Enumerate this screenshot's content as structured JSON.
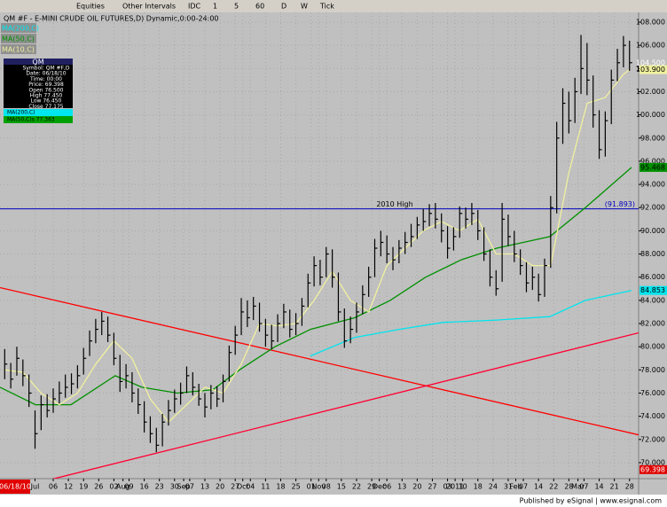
{
  "toolbar": {
    "items": [
      "Equities",
      "Other Intervals",
      "IDC",
      "1",
      "5",
      "60",
      "D",
      "W",
      "Tick"
    ]
  },
  "footer": "Published by eSignal | www.esignal.com",
  "info_box": {
    "title": "QM",
    "rows": [
      "Symbol: QM #F,D",
      "Date: 06/18/10",
      "Time: 00:00",
      "Price: 69.398",
      "Open 76.500",
      "High 77.450",
      "Low 76.450",
      "Close 77.175"
    ],
    "ma_rows": [
      "MA(200,C)",
      "MA(50,C)s 77.363"
    ]
  },
  "chart_data": {
    "type": "ohlc",
    "title": "QM #F - E-MINI CRUDE OIL FUTURES,D) Dynamic,0:00-24:00",
    "x": [
      -3.2,
      -2.8,
      -2.4,
      -2,
      -1.6,
      -1.2,
      -0.8,
      -0.4,
      0,
      0.4,
      0.8,
      1.2,
      1.6,
      2,
      2.4,
      2.8,
      3.2,
      3.6,
      4,
      4.4,
      4.8,
      5.2,
      5.6,
      6,
      6.4,
      6.8,
      7.2,
      7.6,
      8,
      8.4,
      8.8,
      9.2,
      9.6,
      10,
      10.4,
      10.8,
      11.2,
      11.6,
      12,
      12.4,
      12.8,
      13.2,
      13.6,
      14,
      14.4,
      14.8,
      15.2,
      15.6,
      16,
      16.4,
      16.8,
      17.2,
      17.6,
      18,
      18.4,
      18.8,
      19.2,
      19.6,
      20,
      20.4,
      20.8,
      21.2,
      21.6,
      22,
      22.4,
      22.8,
      23.2,
      23.6,
      24,
      24.4,
      24.8,
      25.2,
      25.6,
      26,
      26.4,
      26.8,
      27.2,
      27.6,
      28,
      28.4,
      28.8,
      29.2,
      29.6,
      30,
      30.4,
      30.8,
      31.2,
      31.6,
      32,
      32.4,
      32.8,
      33.2,
      33.6,
      34,
      34.4,
      34.8,
      35.2,
      35.6,
      36,
      36.4,
      36.8,
      37.2,
      37.6,
      38
    ],
    "high": [
      79.8,
      78.6,
      80,
      78.9,
      77.6,
      74.5,
      75.8,
      75.9,
      76.4,
      77,
      77.6,
      77.7,
      78.4,
      79.9,
      81.4,
      82.4,
      83,
      82.6,
      81.2,
      79.3,
      78.5,
      77.8,
      76.4,
      75.3,
      74,
      73,
      74.2,
      75.4,
      76.3,
      76.9,
      78.3,
      77.8,
      76.8,
      76,
      76.7,
      76.6,
      77.6,
      80.1,
      81.8,
      84.2,
      84,
      84.3,
      83.8,
      82.4,
      81.9,
      82.8,
      83.7,
      83.2,
      82.9,
      84.2,
      86.3,
      87.8,
      87.5,
      88.6,
      88.4,
      86.4,
      83.3,
      82.6,
      83.8,
      85.3,
      86.9,
      89.3,
      90,
      89.6,
      88.6,
      89.2,
      89.9,
      90.6,
      91.2,
      91.9,
      92.3,
      92.4,
      91.5,
      90.4,
      90.3,
      92.1,
      92,
      92.4,
      91.8,
      90.3,
      88.4,
      86.6,
      92.4,
      91.4,
      90,
      88.4,
      87.3,
      86.9,
      86.3,
      87.6,
      93,
      99.4,
      102.3,
      102,
      103.2,
      106.9,
      106.2,
      103.4,
      100.4,
      100.3,
      103.9,
      105.7,
      106.8,
      106.4
    ],
    "low": [
      77.2,
      76.4,
      77.5,
      76.6,
      74.8,
      71.2,
      72.8,
      73.9,
      74.3,
      75.1,
      75.6,
      75.9,
      76.4,
      77.6,
      79.2,
      80.3,
      81,
      80.4,
      78.4,
      76.1,
      76.4,
      75.2,
      74.2,
      72.6,
      71.7,
      70.9,
      71.4,
      73.2,
      74.3,
      75,
      76,
      75.8,
      74.9,
      73.9,
      74.6,
      74.8,
      75.2,
      77,
      79.3,
      81,
      81.7,
      82.3,
      81.3,
      80,
      79.8,
      80.4,
      81.6,
      80.8,
      81,
      81.8,
      83.4,
      85.2,
      85.3,
      86,
      85.1,
      82.2,
      79.9,
      80.3,
      81.2,
      82.8,
      84.3,
      86,
      87.8,
      87.2,
      86.6,
      87.2,
      88,
      88.6,
      89.3,
      90,
      90.4,
      90.2,
      89,
      87.6,
      88.3,
      89.4,
      90.2,
      90.5,
      89.2,
      87.4,
      85.2,
      84.4,
      85.6,
      88.7,
      87.3,
      86.2,
      84.7,
      84.9,
      83.9,
      84.3,
      86.8,
      91.5,
      97.5,
      98.4,
      99.3,
      101.8,
      101.7,
      98.9,
      96.2,
      96.4,
      99.2,
      102.9,
      104.1,
      103.8
    ],
    "close": [
      78.5,
      77.2,
      79,
      77.5,
      76,
      72.5,
      75,
      74.5,
      75.5,
      76,
      76.5,
      76.8,
      77.5,
      79,
      80.5,
      81.5,
      82.2,
      81,
      79,
      77,
      77.5,
      76,
      75,
      73.5,
      72.5,
      71.5,
      73.5,
      74.5,
      75.5,
      76,
      77.5,
      76.5,
      75.5,
      74.8,
      76,
      75.5,
      77,
      79.5,
      81,
      83,
      82.5,
      83.5,
      82,
      81,
      80.5,
      82,
      83,
      81.5,
      82,
      83.5,
      85.5,
      87,
      86,
      88,
      86,
      83,
      80.5,
      81.5,
      83,
      84.5,
      86,
      88.5,
      89,
      88,
      87.5,
      88.5,
      89,
      89.5,
      90.5,
      90.8,
      91.5,
      91,
      90,
      88.5,
      89.5,
      91.5,
      91,
      91.5,
      90,
      88,
      86,
      85,
      91,
      89.5,
      88,
      87,
      85.5,
      86,
      84.5,
      87,
      92,
      98,
      101,
      99.5,
      102,
      104,
      103,
      100,
      97,
      99.5,
      103,
      104.5,
      106,
      104.5
    ],
    "close_label": "104.500",
    "bar_color": "#000000",
    "overlays": [
      {
        "name": "MA(200,C)",
        "color": "#00e5ee",
        "x": [
          16.96,
          19.88,
          22.81,
          25.73,
          29.24,
          32.75,
          35.09,
          38.13
        ],
        "values": [
          79.2,
          80.8,
          81.5,
          82.1,
          82.3,
          82.6,
          84,
          84.853
        ],
        "last_label": "84.853"
      },
      {
        "name": "MA(50,C)",
        "color": "#009000",
        "x": [
          -3.51,
          -1.17,
          1.17,
          4.09,
          5.85,
          8.19,
          10.53,
          12.28,
          14.62,
          16.96,
          19.88,
          22.22,
          24.56,
          26.9,
          29.24,
          30.99,
          32.75,
          35.09,
          38.13
        ],
        "values": [
          76.5,
          75,
          75,
          77.5,
          76.5,
          76,
          76.3,
          78,
          80,
          81.5,
          82.5,
          84,
          86,
          87.5,
          88.5,
          89,
          89.5,
          92,
          95.468
        ],
        "last_label": "95.468"
      },
      {
        "name": "MA(10,C)",
        "color": "#f0f0a0",
        "x": [
          -3.2,
          -2,
          -0.8,
          0.4,
          1.6,
          2.8,
          4,
          5.2,
          6.4,
          7.6,
          8.8,
          10,
          11.2,
          12.4,
          13.6,
          14.8,
          16,
          17.2,
          18.4,
          19.6,
          20.8,
          22,
          23.2,
          24.4,
          25.6,
          26.8,
          28,
          29.2,
          30.4,
          31.6,
          32.8,
          34,
          35.2,
          36.4,
          37.6,
          38
        ],
        "values": [
          78,
          77.8,
          76,
          75,
          76,
          78.5,
          80.5,
          79,
          75.5,
          73.5,
          75,
          76.5,
          76,
          78.5,
          82,
          81.8,
          82,
          84,
          86.5,
          84,
          83,
          87,
          88.5,
          90,
          90.8,
          90,
          91,
          88,
          88,
          87,
          87,
          95,
          101,
          101.5,
          103.5,
          103.9
        ],
        "last_label": "103.900"
      }
    ],
    "trendlines": [
      {
        "color": "#ff0000",
        "x": [
          -3.51,
          38.6
        ],
        "values": [
          85.1,
          72.4
        ]
      },
      {
        "color": "#ff0030",
        "x": [
          0,
          38.6
        ],
        "values": [
          68.6,
          81.2
        ]
      }
    ],
    "hline": {
      "name": "2010 High",
      "value": 91.893,
      "label": "(91.893)",
      "color": "#0000c0"
    },
    "cursor": {
      "date": "06/18/10",
      "price": {
        "value": 69.398,
        "label": "69.398"
      },
      "color": "#e00000"
    },
    "xlim": [
      -3.51,
      38.6
    ],
    "ylim": [
      68.62,
      108.84
    ],
    "xticks": [
      {
        "value": -1.2,
        "label": "Jul"
      },
      {
        "value": 0,
        "label": "06"
      },
      {
        "value": 1,
        "label": "12"
      },
      {
        "value": 2,
        "label": "19"
      },
      {
        "value": 3,
        "label": "26"
      },
      {
        "value": 4,
        "label": "02"
      },
      {
        "value": 4.6,
        "label": "Aug"
      },
      {
        "value": 5,
        "label": "09"
      },
      {
        "value": 6,
        "label": "16"
      },
      {
        "value": 7,
        "label": "23"
      },
      {
        "value": 8,
        "label": "30"
      },
      {
        "value": 8.6,
        "label": "Sep"
      },
      {
        "value": 9,
        "label": "07"
      },
      {
        "value": 10,
        "label": "13"
      },
      {
        "value": 11,
        "label": "20"
      },
      {
        "value": 12,
        "label": "27"
      },
      {
        "value": 12.5,
        "label": "Oct"
      },
      {
        "value": 13,
        "label": "04"
      },
      {
        "value": 14,
        "label": "11"
      },
      {
        "value": 15,
        "label": "18"
      },
      {
        "value": 16,
        "label": "25"
      },
      {
        "value": 17,
        "label": "01"
      },
      {
        "value": 17.5,
        "label": "Nov"
      },
      {
        "value": 18,
        "label": "08"
      },
      {
        "value": 19,
        "label": "15"
      },
      {
        "value": 20,
        "label": "22"
      },
      {
        "value": 21,
        "label": "29"
      },
      {
        "value": 21.5,
        "label": "Dec"
      },
      {
        "value": 22,
        "label": "06"
      },
      {
        "value": 23,
        "label": "13"
      },
      {
        "value": 24,
        "label": "20"
      },
      {
        "value": 25,
        "label": "27"
      },
      {
        "value": 26,
        "label": "03"
      },
      {
        "value": 26.5,
        "label": "2011"
      },
      {
        "value": 27,
        "label": "10"
      },
      {
        "value": 28,
        "label": "18"
      },
      {
        "value": 29,
        "label": "24"
      },
      {
        "value": 30,
        "label": "31"
      },
      {
        "value": 30.5,
        "label": "Feb"
      },
      {
        "value": 31,
        "label": "07"
      },
      {
        "value": 32,
        "label": "14"
      },
      {
        "value": 33,
        "label": "22"
      },
      {
        "value": 34,
        "label": "28"
      },
      {
        "value": 34.6,
        "label": "Mar"
      },
      {
        "value": 35,
        "label": "07"
      },
      {
        "value": 36,
        "label": "14"
      },
      {
        "value": 37,
        "label": "21"
      },
      {
        "value": 38,
        "label": "28"
      }
    ],
    "yticks": [
      {
        "value": 70,
        "label": "70.000"
      },
      {
        "value": 72,
        "label": "72.000"
      },
      {
        "value": 74,
        "label": "74.000"
      },
      {
        "value": 76,
        "label": "76.000"
      },
      {
        "value": 78,
        "label": "78.000"
      },
      {
        "value": 80,
        "label": "80.000"
      },
      {
        "value": 82,
        "label": "82.000"
      },
      {
        "value": 84,
        "label": "84.000"
      },
      {
        "value": 86,
        "label": "86.000"
      },
      {
        "value": 88,
        "label": "88.000"
      },
      {
        "value": 90,
        "label": "90.000"
      },
      {
        "value": 92,
        "label": "92.000"
      },
      {
        "value": 94,
        "label": "94.000"
      },
      {
        "value": 96,
        "label": "96.000"
      },
      {
        "value": 98,
        "label": "98.000"
      },
      {
        "value": 100,
        "label": "100.000"
      },
      {
        "value": 102,
        "label": "102.000"
      },
      {
        "value": 104,
        "label": "104.000"
      },
      {
        "value": 106,
        "label": "106.000"
      },
      {
        "value": 108,
        "label": "108.000"
      }
    ],
    "grid": true
  }
}
